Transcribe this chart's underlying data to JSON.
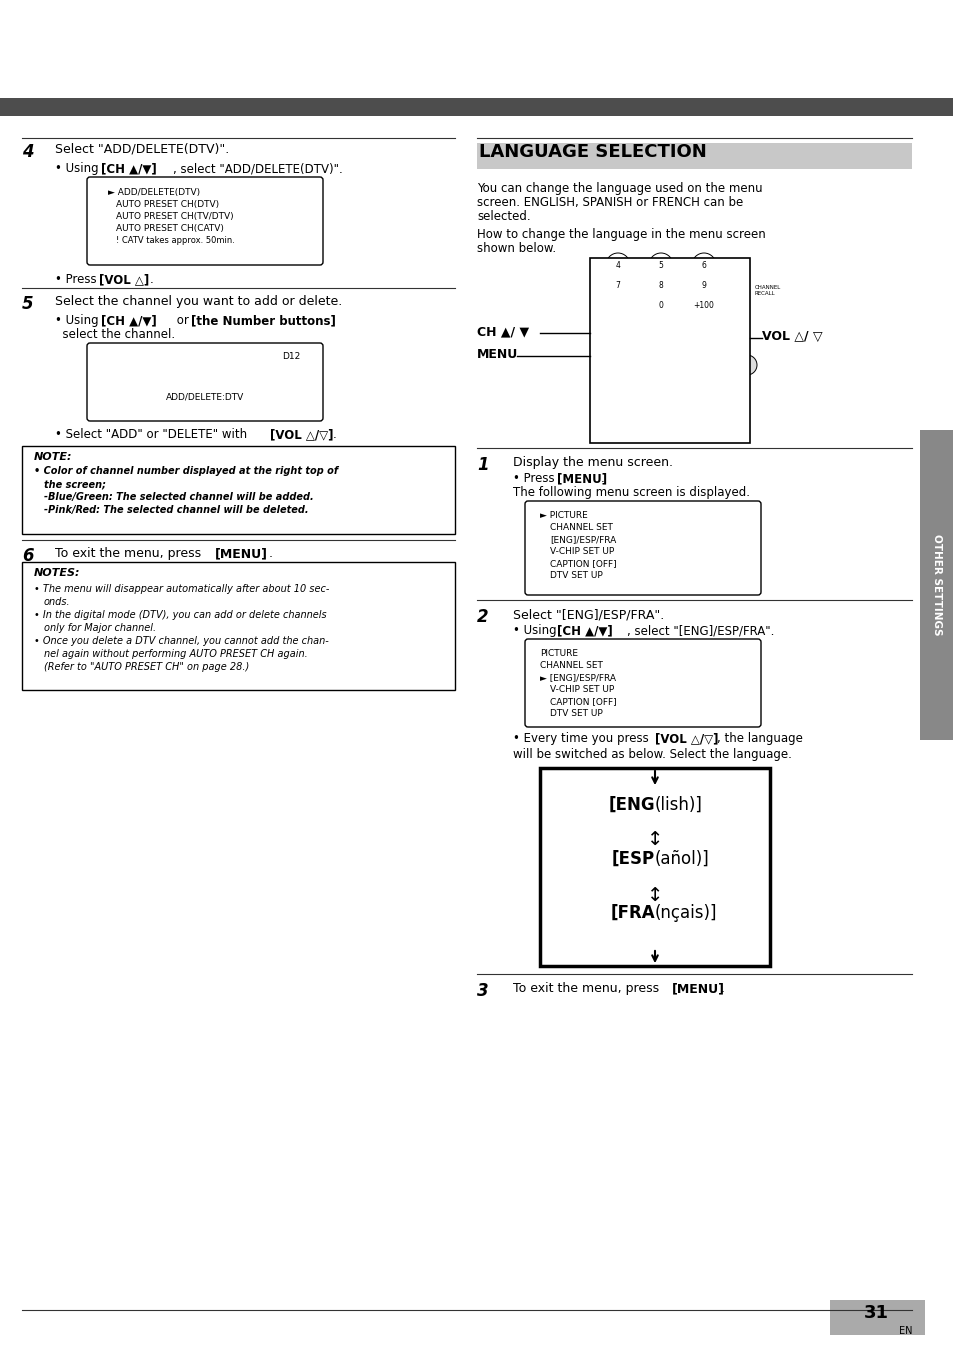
{
  "page_bg": "#ffffff",
  "header_bar_color": "#4d4d4d",
  "title_right": "LANGUAGE SELECTION",
  "page_number": "31",
  "page_label": "EN",
  "sidebar_text": "OTHER SETTINGS",
  "sidebar_bg": "#888888",
  "pn_bg": "#aaaaaa"
}
